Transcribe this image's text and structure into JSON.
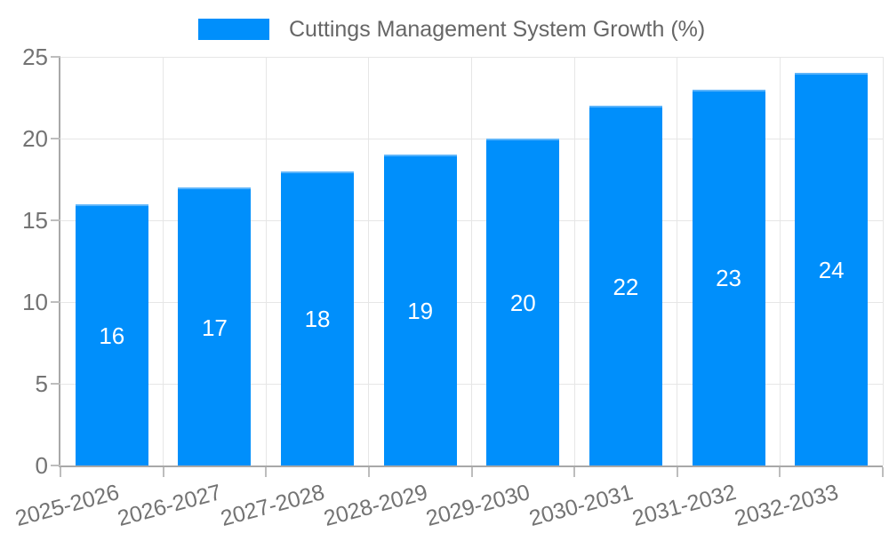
{
  "chart_data": {
    "type": "bar",
    "title": "Cuttings Management System Growth (%)",
    "categories": [
      "2025-2026",
      "2026-2027",
      "2027-2028",
      "2028-2029",
      "2029-2030",
      "2030-2031",
      "2031-2032",
      "2032-2033"
    ],
    "series": [
      {
        "name": "Cuttings Management System Growth (%)",
        "values": [
          16,
          17,
          18,
          19,
          20,
          22,
          23,
          24
        ]
      }
    ],
    "xlabel": "",
    "ylabel": "",
    "ylim": [
      0,
      25
    ],
    "yticks": [
      0,
      5,
      10,
      15,
      20,
      25
    ],
    "grid": true,
    "legend_position": "top",
    "x_label_rotation_deg": -15,
    "colors": {
      "bar": "#008ffb",
      "bar_top_edge": "#5cb4fa",
      "grid": "#e6e6e6",
      "axis": "#a8a8a8",
      "tick": "#bdbdbd",
      "tick_label": "#737373",
      "legend_label": "#666666",
      "value_label": "#ffffff",
      "background": "#ffffff"
    }
  }
}
